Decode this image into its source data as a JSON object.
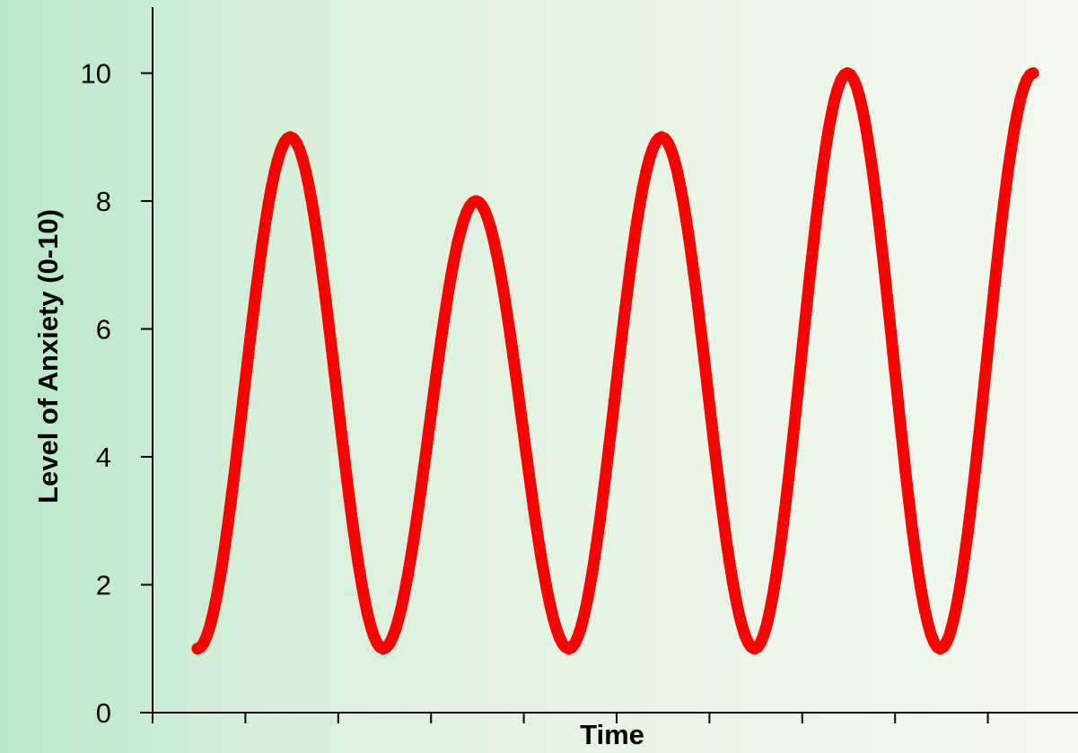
{
  "chart_data": {
    "type": "line",
    "title": "",
    "xlabel": "Time",
    "ylabel": "Level of Anxiety  (0-10)",
    "ylim": [
      0,
      10.5
    ],
    "y_ticks": [
      0,
      2,
      4,
      6,
      8,
      10
    ],
    "x_tick_count": 10,
    "grid": false,
    "line_color": "#ff0000",
    "axis_color": "#000000",
    "series": [
      {
        "x": [
          0,
          1,
          2,
          3,
          4,
          5,
          6,
          7,
          8,
          9
        ],
        "values": [
          1,
          9,
          1,
          8,
          1,
          9,
          1,
          10,
          1,
          10
        ]
      }
    ]
  }
}
